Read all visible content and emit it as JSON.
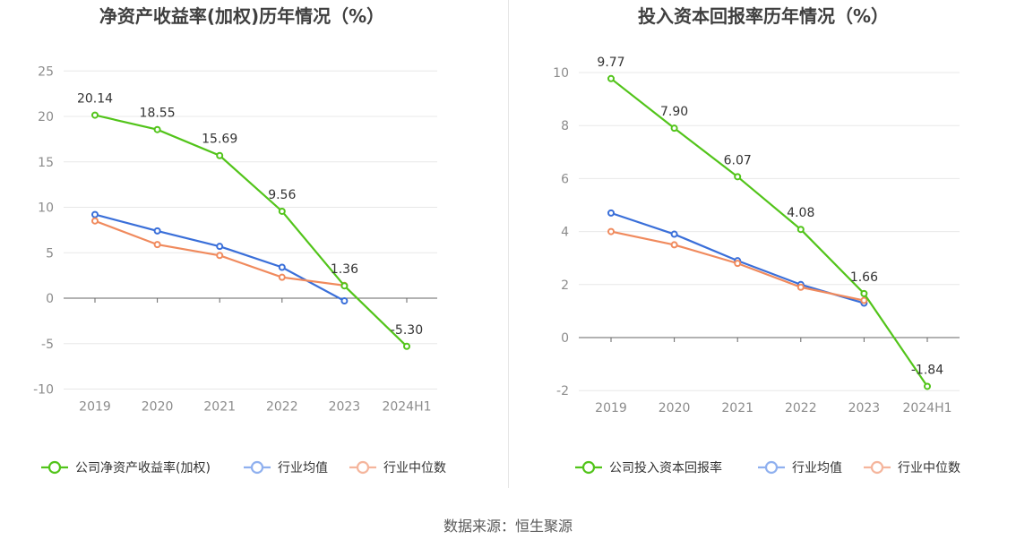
{
  "chart_data": [
    {
      "type": "line",
      "title": "净资产收益率(加权)历年情况（%）",
      "categories": [
        "2019",
        "2020",
        "2021",
        "2022",
        "2023",
        "2024H1"
      ],
      "ylim": [
        -10,
        25
      ],
      "yticks": [
        25,
        20,
        15,
        10,
        5,
        0,
        -5,
        -10
      ],
      "grid": true,
      "legend_position": "bottom",
      "series": [
        {
          "name": "公司净资产收益率(加权)",
          "color": "#52c41a",
          "values": [
            20.14,
            18.55,
            15.69,
            9.56,
            1.36,
            -5.3
          ],
          "labels": [
            "20.14",
            "18.55",
            "15.69",
            "9.56",
            "1.36",
            "-5.30"
          ]
        },
        {
          "name": "行业均值",
          "color": "#3a6fd9",
          "values": [
            9.2,
            7.4,
            5.7,
            3.4,
            -0.3,
            null
          ]
        },
        {
          "name": "行业中位数",
          "color": "#f08a5d",
          "values": [
            8.5,
            5.9,
            4.7,
            2.3,
            1.4,
            null
          ]
        }
      ],
      "legend_colors": [
        "#52c41a",
        "#8fb0ef",
        "#f5b59c"
      ]
    },
    {
      "type": "line",
      "title": "投入资本回报率历年情况（%）",
      "categories": [
        "2019",
        "2020",
        "2021",
        "2022",
        "2023",
        "2024H1"
      ],
      "ylim": [
        -2,
        10
      ],
      "yticks": [
        10,
        8,
        6,
        4,
        2,
        0,
        -2
      ],
      "grid": true,
      "legend_position": "bottom",
      "series": [
        {
          "name": "公司投入资本回报率",
          "color": "#52c41a",
          "values": [
            9.77,
            7.9,
            6.07,
            4.08,
            1.66,
            -1.84
          ],
          "labels": [
            "9.77",
            "7.90",
            "6.07",
            "4.08",
            "1.66",
            "-1.84"
          ]
        },
        {
          "name": "行业均值",
          "color": "#3a6fd9",
          "values": [
            4.7,
            3.9,
            2.9,
            2.0,
            1.3,
            null
          ]
        },
        {
          "name": "行业中位数",
          "color": "#f08a5d",
          "values": [
            4.0,
            3.5,
            2.8,
            1.9,
            1.4,
            null
          ]
        }
      ],
      "legend_colors": [
        "#52c41a",
        "#8fb0ef",
        "#f5b59c"
      ]
    }
  ],
  "footer": {
    "source": "数据来源：恒生聚源"
  }
}
